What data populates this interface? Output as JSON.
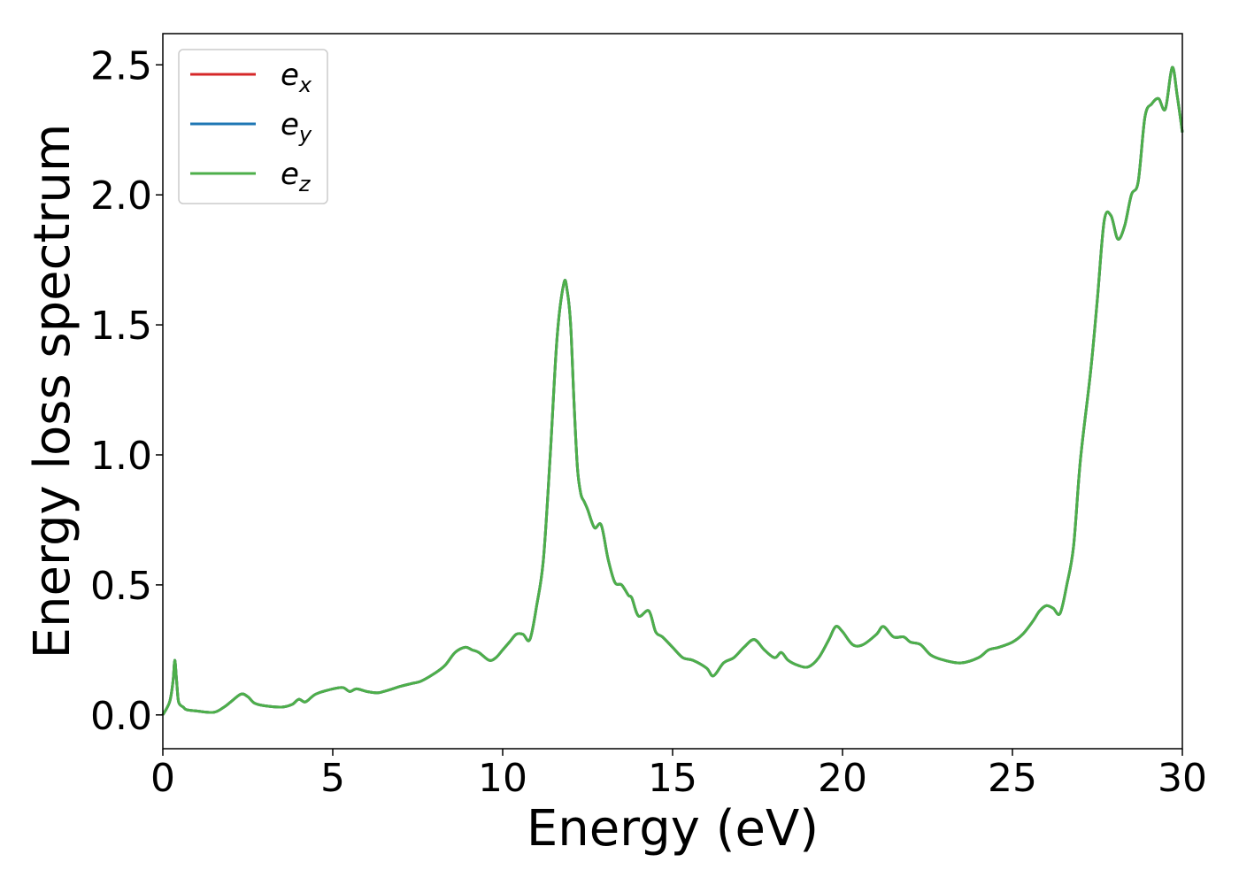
{
  "chart_data": {
    "type": "line",
    "title": "",
    "xlabel": "Energy (eV)",
    "ylabel": "Energy loss spectrum",
    "xlim": [
      0,
      30
    ],
    "ylim": [
      -0.13,
      2.62
    ],
    "xticks": [
      0,
      5,
      10,
      15,
      20,
      25,
      30
    ],
    "yticks": [
      0.0,
      0.5,
      1.0,
      1.5,
      2.0,
      2.5
    ],
    "xtick_labels": [
      "0",
      "5",
      "10",
      "15",
      "20",
      "25",
      "30"
    ],
    "ytick_labels": [
      "0.0",
      "0.5",
      "1.0",
      "1.5",
      "2.0",
      "2.5"
    ],
    "grid": false,
    "legend_position": "top-left",
    "x": [
      0,
      0.2,
      0.3,
      0.35,
      0.4,
      0.45,
      0.5,
      0.6,
      0.7,
      1.0,
      1.5,
      1.8,
      2.0,
      2.3,
      2.5,
      2.7,
      3.0,
      3.5,
      3.8,
      4.0,
      4.2,
      4.5,
      5.0,
      5.3,
      5.5,
      5.7,
      6.0,
      6.3,
      6.5,
      7.0,
      7.3,
      7.6,
      8.0,
      8.3,
      8.6,
      8.9,
      9.1,
      9.3,
      9.6,
      9.8,
      10.0,
      10.2,
      10.4,
      10.6,
      10.8,
      11.0,
      11.2,
      11.4,
      11.6,
      11.8,
      11.9,
      12.0,
      12.1,
      12.2,
      12.3,
      12.4,
      12.5,
      12.7,
      12.9,
      13.1,
      13.3,
      13.5,
      13.7,
      13.8,
      14.0,
      14.3,
      14.5,
      14.7,
      15.0,
      15.3,
      15.6,
      16.0,
      16.2,
      16.5,
      16.8,
      17.1,
      17.4,
      17.7,
      18.0,
      18.2,
      18.4,
      18.7,
      19.0,
      19.3,
      19.6,
      19.8,
      20.0,
      20.3,
      20.6,
      21.0,
      21.2,
      21.5,
      21.8,
      22.0,
      22.3,
      22.6,
      23.0,
      23.5,
      24.0,
      24.3,
      24.6,
      25.0,
      25.3,
      25.6,
      25.8,
      26.0,
      26.2,
      26.4,
      26.6,
      26.8,
      27.0,
      27.3,
      27.5,
      27.7,
      27.9,
      28.1,
      28.3,
      28.5,
      28.7,
      28.9,
      29.1,
      29.3,
      29.5,
      29.7,
      29.85,
      30.0
    ],
    "series": [
      {
        "name": "e_x",
        "color": "#d62728",
        "values": [
          0,
          0.05,
          0.13,
          0.21,
          0.14,
          0.06,
          0.04,
          0.03,
          0.02,
          0.015,
          0.01,
          0.03,
          0.05,
          0.08,
          0.07,
          0.045,
          0.035,
          0.03,
          0.04,
          0.06,
          0.05,
          0.08,
          0.1,
          0.105,
          0.09,
          0.1,
          0.09,
          0.085,
          0.09,
          0.11,
          0.12,
          0.13,
          0.16,
          0.19,
          0.24,
          0.26,
          0.25,
          0.24,
          0.21,
          0.22,
          0.25,
          0.28,
          0.31,
          0.31,
          0.29,
          0.42,
          0.6,
          1.0,
          1.45,
          1.66,
          1.63,
          1.5,
          1.2,
          0.95,
          0.85,
          0.82,
          0.79,
          0.72,
          0.73,
          0.6,
          0.51,
          0.5,
          0.46,
          0.45,
          0.38,
          0.4,
          0.32,
          0.3,
          0.26,
          0.22,
          0.21,
          0.18,
          0.15,
          0.2,
          0.22,
          0.26,
          0.29,
          0.25,
          0.22,
          0.24,
          0.21,
          0.19,
          0.185,
          0.22,
          0.29,
          0.34,
          0.32,
          0.27,
          0.27,
          0.31,
          0.34,
          0.3,
          0.3,
          0.28,
          0.27,
          0.23,
          0.21,
          0.2,
          0.22,
          0.25,
          0.26,
          0.28,
          0.31,
          0.36,
          0.4,
          0.42,
          0.41,
          0.39,
          0.5,
          0.65,
          0.98,
          1.32,
          1.6,
          1.9,
          1.92,
          1.83,
          1.88,
          2.0,
          2.05,
          2.3,
          2.35,
          2.37,
          2.33,
          2.49,
          2.38,
          2.24
        ]
      },
      {
        "name": "e_y",
        "color": "#1f77b4",
        "values": [
          0,
          0.05,
          0.13,
          0.21,
          0.14,
          0.06,
          0.04,
          0.03,
          0.02,
          0.015,
          0.01,
          0.03,
          0.05,
          0.08,
          0.07,
          0.045,
          0.035,
          0.03,
          0.04,
          0.06,
          0.05,
          0.08,
          0.1,
          0.105,
          0.09,
          0.1,
          0.09,
          0.085,
          0.09,
          0.11,
          0.12,
          0.13,
          0.16,
          0.19,
          0.24,
          0.26,
          0.25,
          0.24,
          0.21,
          0.22,
          0.25,
          0.28,
          0.31,
          0.31,
          0.29,
          0.42,
          0.6,
          1.0,
          1.45,
          1.66,
          1.63,
          1.5,
          1.2,
          0.95,
          0.85,
          0.82,
          0.79,
          0.72,
          0.73,
          0.6,
          0.51,
          0.5,
          0.46,
          0.45,
          0.38,
          0.4,
          0.32,
          0.3,
          0.26,
          0.22,
          0.21,
          0.18,
          0.15,
          0.2,
          0.22,
          0.26,
          0.29,
          0.25,
          0.22,
          0.24,
          0.21,
          0.19,
          0.185,
          0.22,
          0.29,
          0.34,
          0.32,
          0.27,
          0.27,
          0.31,
          0.34,
          0.3,
          0.3,
          0.28,
          0.27,
          0.23,
          0.21,
          0.2,
          0.22,
          0.25,
          0.26,
          0.28,
          0.31,
          0.36,
          0.4,
          0.42,
          0.41,
          0.39,
          0.5,
          0.65,
          0.98,
          1.32,
          1.6,
          1.9,
          1.92,
          1.83,
          1.88,
          2.0,
          2.05,
          2.3,
          2.35,
          2.37,
          2.33,
          2.49,
          2.38,
          2.24
        ]
      },
      {
        "name": "e_z",
        "color": "#4daf4a",
        "values": [
          0,
          0.05,
          0.13,
          0.21,
          0.14,
          0.06,
          0.04,
          0.03,
          0.02,
          0.015,
          0.01,
          0.03,
          0.05,
          0.08,
          0.07,
          0.045,
          0.035,
          0.03,
          0.04,
          0.06,
          0.05,
          0.08,
          0.1,
          0.105,
          0.09,
          0.1,
          0.09,
          0.085,
          0.09,
          0.11,
          0.12,
          0.13,
          0.16,
          0.19,
          0.24,
          0.26,
          0.25,
          0.24,
          0.21,
          0.22,
          0.25,
          0.28,
          0.31,
          0.31,
          0.29,
          0.42,
          0.6,
          1.0,
          1.45,
          1.66,
          1.63,
          1.5,
          1.2,
          0.95,
          0.85,
          0.82,
          0.79,
          0.72,
          0.73,
          0.6,
          0.51,
          0.5,
          0.46,
          0.45,
          0.38,
          0.4,
          0.32,
          0.3,
          0.26,
          0.22,
          0.21,
          0.18,
          0.15,
          0.2,
          0.22,
          0.26,
          0.29,
          0.25,
          0.22,
          0.24,
          0.21,
          0.19,
          0.185,
          0.22,
          0.29,
          0.34,
          0.32,
          0.27,
          0.27,
          0.31,
          0.34,
          0.3,
          0.3,
          0.28,
          0.27,
          0.23,
          0.21,
          0.2,
          0.22,
          0.25,
          0.26,
          0.28,
          0.31,
          0.36,
          0.4,
          0.42,
          0.41,
          0.39,
          0.5,
          0.65,
          0.98,
          1.32,
          1.6,
          1.9,
          1.92,
          1.83,
          1.88,
          2.0,
          2.05,
          2.3,
          2.35,
          2.37,
          2.33,
          2.49,
          2.38,
          2.24
        ]
      }
    ],
    "legend": [
      {
        "base": "e",
        "sub": "x",
        "color": "#d62728"
      },
      {
        "base": "e",
        "sub": "y",
        "color": "#1f77b4"
      },
      {
        "base": "e",
        "sub": "z",
        "color": "#4daf4a"
      }
    ]
  }
}
